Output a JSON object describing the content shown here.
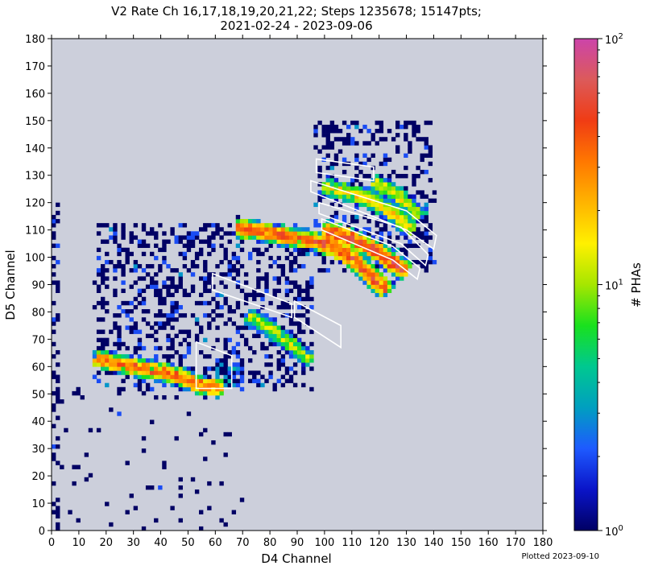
{
  "chart_data": {
    "type": "heatmap",
    "title": "V2 Rate Ch 16,17,18,19,20,21,22; Steps 1235678; 15147pts;",
    "subtitle": "2021-02-24 - 2023-09-06",
    "xlabel": "D4 Channel",
    "ylabel": "D5 Channel",
    "xlim": [
      0,
      180
    ],
    "ylim": [
      0,
      180
    ],
    "xticks": [
      "0",
      "10",
      "20",
      "30",
      "40",
      "50",
      "60",
      "70",
      "80",
      "90",
      "100",
      "110",
      "120",
      "130",
      "140",
      "150",
      "160",
      "170",
      "180"
    ],
    "yticks": [
      "0",
      "10",
      "20",
      "30",
      "40",
      "50",
      "60",
      "70",
      "80",
      "90",
      "100",
      "110",
      "120",
      "130",
      "140",
      "150",
      "160",
      "170",
      "180"
    ],
    "background_color": "#cccfdb",
    "colorbar": {
      "label": "# PHAs",
      "scale": "log",
      "range": [
        1,
        100
      ],
      "ticks": [
        {
          "value": 1,
          "label": "10",
          "exp": "0"
        },
        {
          "value": 10,
          "label": "10",
          "exp": "1"
        },
        {
          "value": 100,
          "label": "10",
          "exp": "2"
        }
      ],
      "colors": [
        "#000064",
        "#0a14c8",
        "#1e5aff",
        "#009fc0",
        "#00c890",
        "#19e11e",
        "#a6e600",
        "#fff000",
        "#ffb400",
        "#ff7800",
        "#f03c14",
        "#dc5a5a",
        "#cc44aa"
      ]
    },
    "dense_regions": [
      {
        "points": [
          [
            16,
            63
          ],
          [
            30,
            60
          ],
          [
            45,
            57
          ],
          [
            55,
            53
          ],
          [
            62,
            52
          ]
        ],
        "peak_counts": 40
      },
      {
        "points": [
          [
            72,
            79
          ],
          [
            80,
            74
          ],
          [
            88,
            68
          ],
          [
            95,
            62
          ]
        ],
        "peak_counts": 12
      },
      {
        "points": [
          [
            68,
            111
          ],
          [
            85,
            108
          ],
          [
            100,
            105
          ],
          [
            110,
            100
          ],
          [
            118,
            92
          ],
          [
            123,
            88
          ]
        ],
        "peak_counts": 50
      },
      {
        "points": [
          [
            100,
            110
          ],
          [
            110,
            107
          ],
          [
            118,
            103
          ],
          [
            125,
            98
          ],
          [
            130,
            95
          ]
        ],
        "peak_counts": 60
      },
      {
        "points": [
          [
            100,
            126
          ],
          [
            115,
            122
          ],
          [
            125,
            116
          ],
          [
            132,
            110
          ]
        ],
        "peak_counts": 20
      },
      {
        "points": [
          [
            118,
            128
          ],
          [
            128,
            122
          ],
          [
            135,
            115
          ]
        ],
        "peak_counts": 15
      }
    ],
    "annotations": [
      {
        "type": "polygon-outline",
        "color": "#ffffff",
        "points": [
          [
            53,
            69
          ],
          [
            66,
            64
          ],
          [
            66,
            52
          ],
          [
            53,
            52
          ]
        ]
      },
      {
        "type": "polygon-outline",
        "color": "#ffffff",
        "points": [
          [
            59,
            94
          ],
          [
            88,
            83
          ],
          [
            88,
            78
          ],
          [
            59,
            88
          ]
        ]
      },
      {
        "type": "polygon-outline",
        "color": "#ffffff",
        "points": [
          [
            89,
            84
          ],
          [
            106,
            75
          ],
          [
            106,
            67
          ],
          [
            89,
            78
          ]
        ]
      },
      {
        "type": "polygon-outline",
        "color": "#ffffff",
        "points": [
          [
            97,
            136
          ],
          [
            118,
            133
          ],
          [
            118,
            128
          ],
          [
            97,
            131
          ]
        ]
      },
      {
        "type": "polygon-outline",
        "color": "#ffffff",
        "points": [
          [
            95,
            128
          ],
          [
            130,
            117
          ],
          [
            141,
            108
          ],
          [
            140,
            103
          ],
          [
            130,
            110
          ],
          [
            95,
            124
          ]
        ]
      },
      {
        "type": "polygon-outline",
        "color": "#ffffff",
        "points": [
          [
            98,
            120
          ],
          [
            128,
            111
          ],
          [
            138,
            101
          ],
          [
            137,
            97
          ],
          [
            128,
            105
          ],
          [
            98,
            116
          ]
        ]
      },
      {
        "type": "polygon-outline",
        "color": "#ffffff",
        "points": [
          [
            99,
            114
          ],
          [
            125,
            104
          ],
          [
            135,
            96
          ],
          [
            134,
            92
          ],
          [
            125,
            99
          ],
          [
            99,
            110
          ]
        ]
      }
    ]
  },
  "footer": {
    "plotted": "Plotted 2023-09-10"
  }
}
